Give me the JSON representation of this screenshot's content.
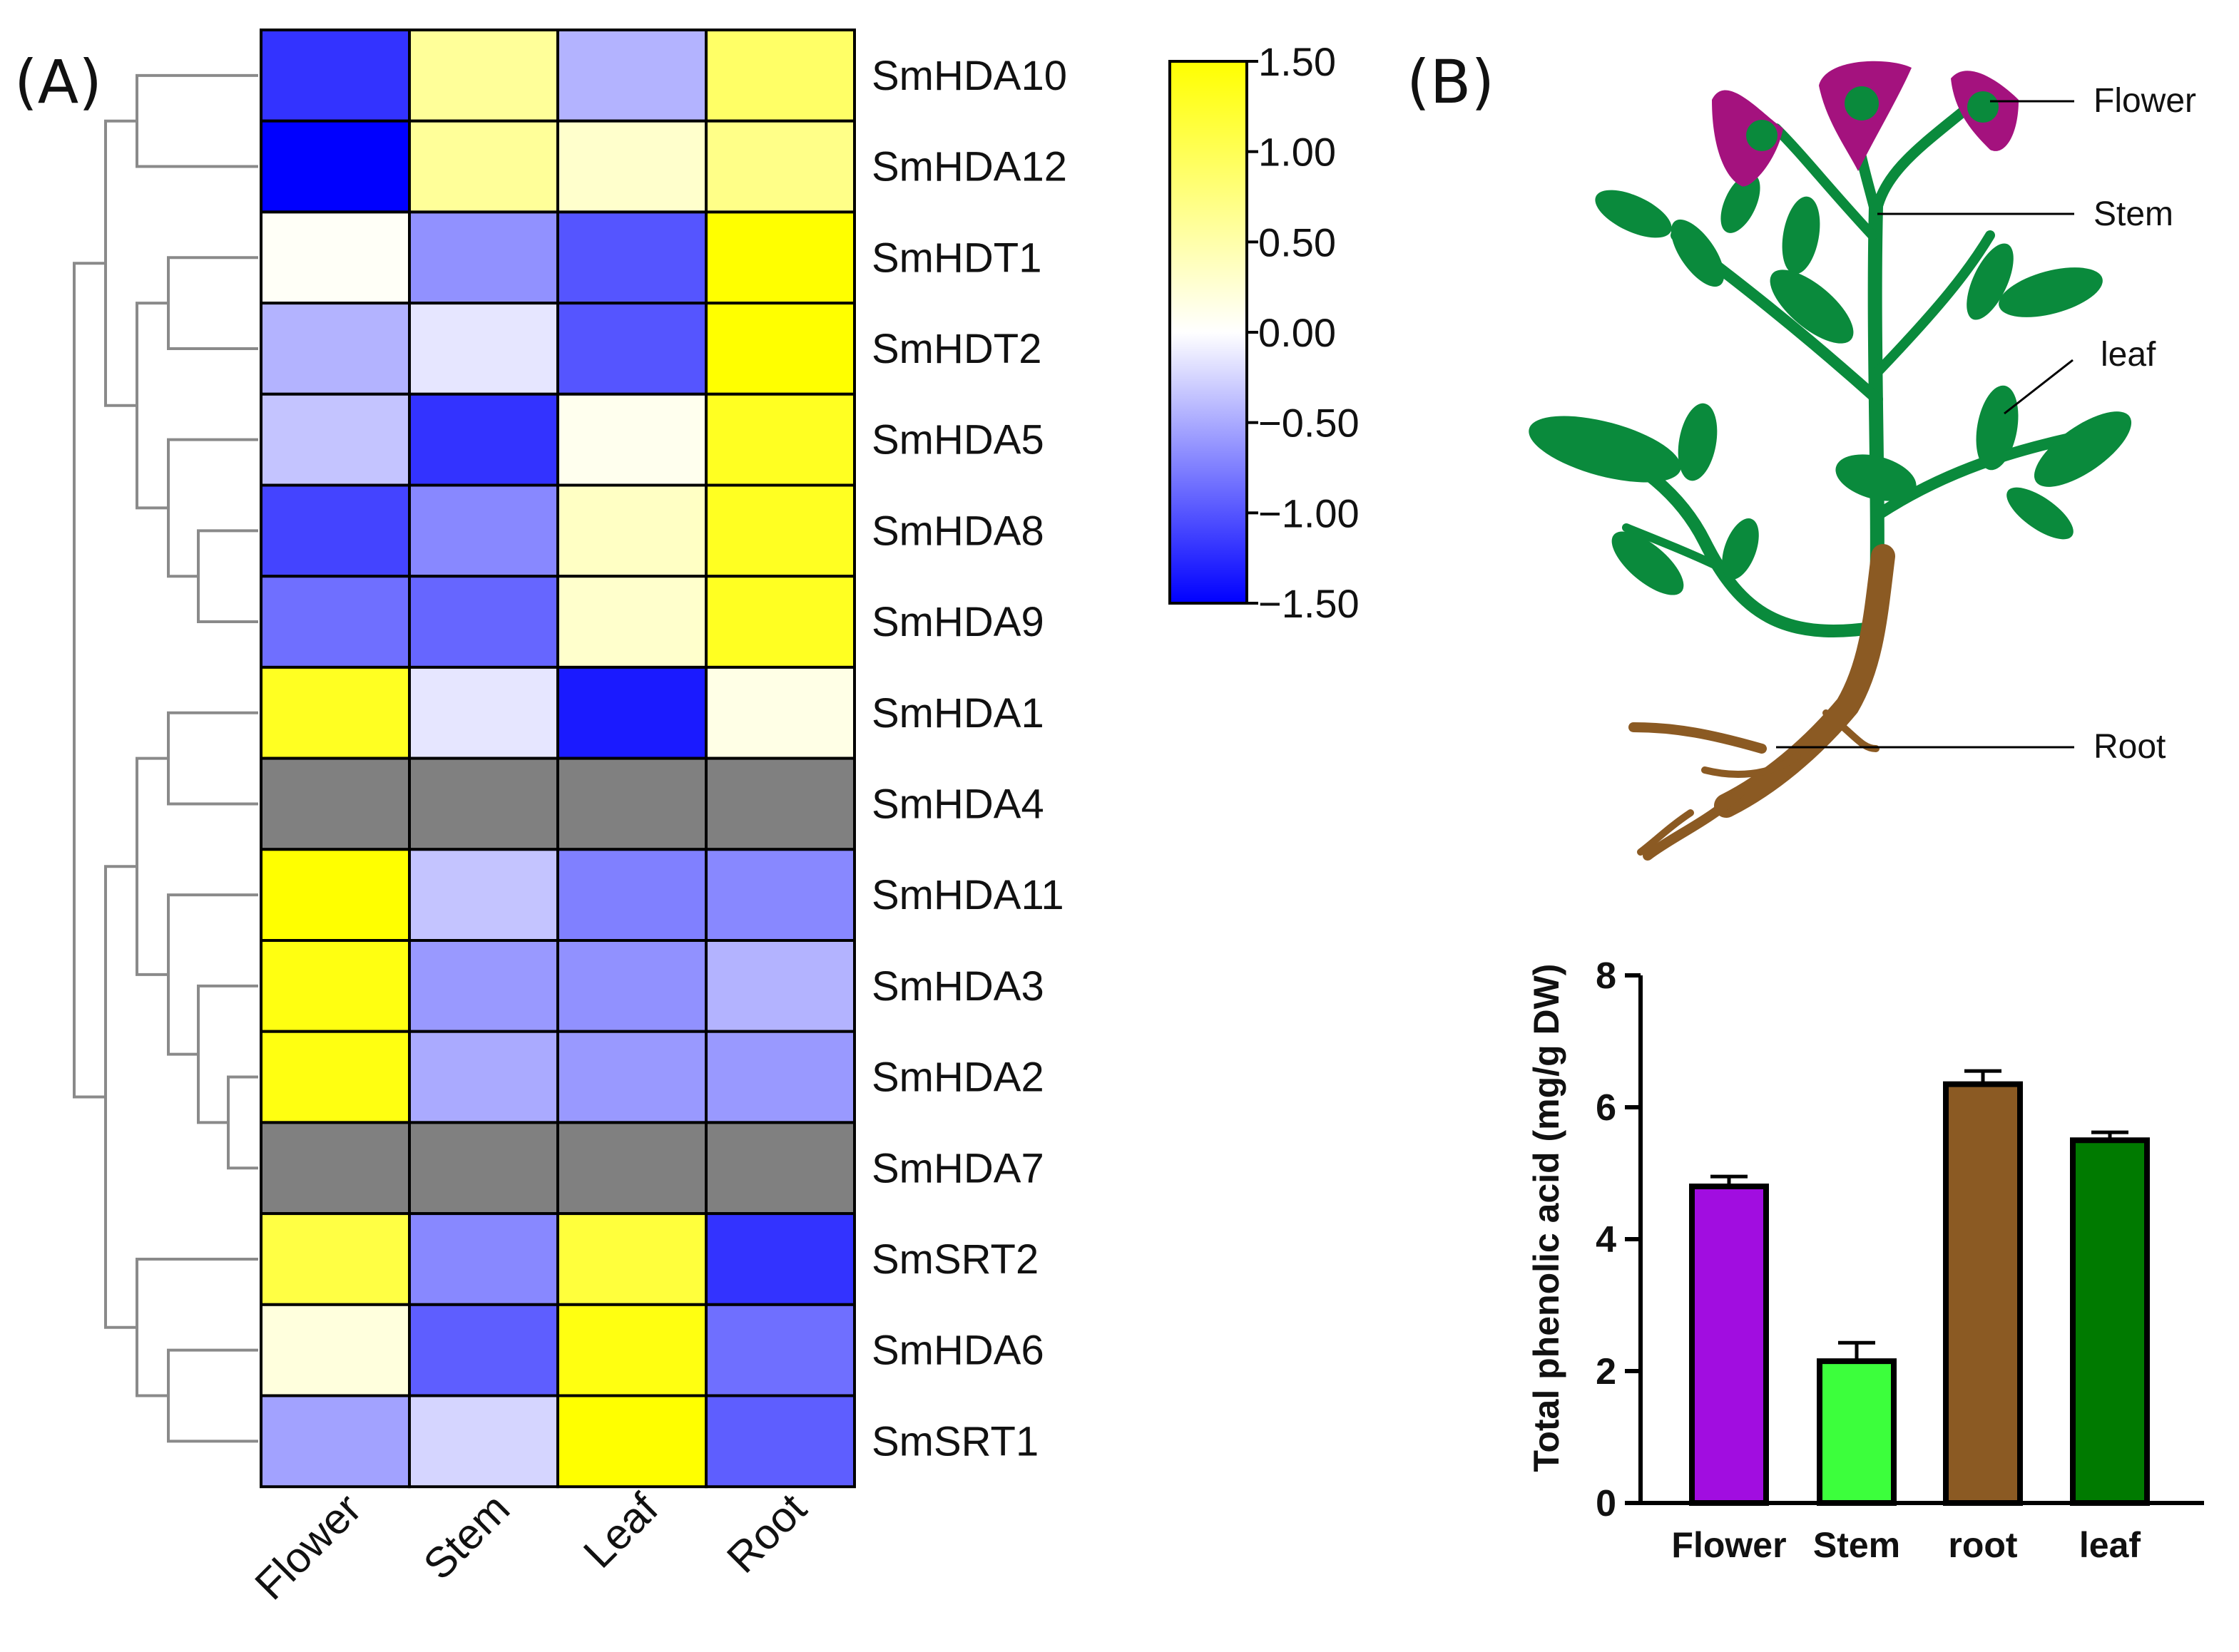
{
  "panels": {
    "a_label": "(A)",
    "b_label": "(B)"
  },
  "chart_data": [
    {
      "type": "heatmap",
      "columns": [
        "Flower",
        "Stem",
        "Leaf",
        "Root"
      ],
      "rows": [
        "SmHDA10",
        "SmHDA12",
        "SmHDT1",
        "SmHDT2",
        "SmHDA5",
        "SmHDA8",
        "SmHDA9",
        "SmHDA1",
        "SmHDA4",
        "SmHDA11",
        "SmHDA3",
        "SmHDA2",
        "SmHDA7",
        "SmSRT2",
        "SmHDA6",
        "SmSRT1"
      ],
      "values": [
        [
          -1.2,
          0.6,
          -0.45,
          0.9
        ],
        [
          -1.5,
          0.6,
          0.3,
          0.7
        ],
        [
          0.05,
          -0.65,
          -1.0,
          1.5
        ],
        [
          -0.45,
          -0.15,
          -1.0,
          1.5
        ],
        [
          -0.35,
          -1.2,
          0.1,
          1.3
        ],
        [
          -1.1,
          -0.7,
          0.35,
          1.3
        ],
        [
          -0.85,
          -0.9,
          0.3,
          1.3
        ],
        [
          1.3,
          -0.15,
          -1.35,
          0.15
        ],
        [
          null,
          null,
          null,
          null
        ],
        [
          1.5,
          -0.35,
          -0.75,
          -0.7
        ],
        [
          1.4,
          -0.6,
          -0.65,
          -0.45
        ],
        [
          1.4,
          -0.5,
          -0.6,
          -0.6
        ],
        [
          null,
          null,
          null,
          null
        ],
        [
          1.1,
          -0.7,
          1.15,
          -1.2
        ],
        [
          0.2,
          -0.95,
          1.4,
          -0.85
        ],
        [
          -0.55,
          -0.25,
          1.5,
          -0.95
        ]
      ],
      "missing_color": "#808080",
      "colorbar": {
        "min": -1.5,
        "max": 1.5,
        "ticks": [
          "1.50",
          "1.00",
          "0.50",
          "0.00",
          "−0.50",
          "−1.00",
          "−1.50"
        ],
        "colors": {
          "low": "#0000ff",
          "mid": "#ffffff",
          "high": "#ffff00"
        }
      },
      "dendrogram": true
    },
    {
      "type": "bar",
      "categories": [
        "Flower",
        "Stem",
        "root",
        "leaf"
      ],
      "values": [
        4.8,
        2.15,
        6.35,
        5.5
      ],
      "errors": [
        0.15,
        0.28,
        0.2,
        0.12
      ],
      "colors": [
        "#a10de0",
        "#3cff3c",
        "#8b5a23",
        "#007a00"
      ],
      "ylabel": "Total phenolic acid (mg/g DW)",
      "ylim": [
        0,
        8
      ],
      "yticks": [
        "0",
        "2",
        "4",
        "6",
        "8"
      ]
    }
  ],
  "plant": {
    "labels": {
      "flower": "Flower",
      "stem": "Stem",
      "leaf": "leaf",
      "root": "Root"
    },
    "colors": {
      "leaf": "#0a8a3c",
      "flower": "#a4127e",
      "root": "#8b5a23"
    }
  }
}
